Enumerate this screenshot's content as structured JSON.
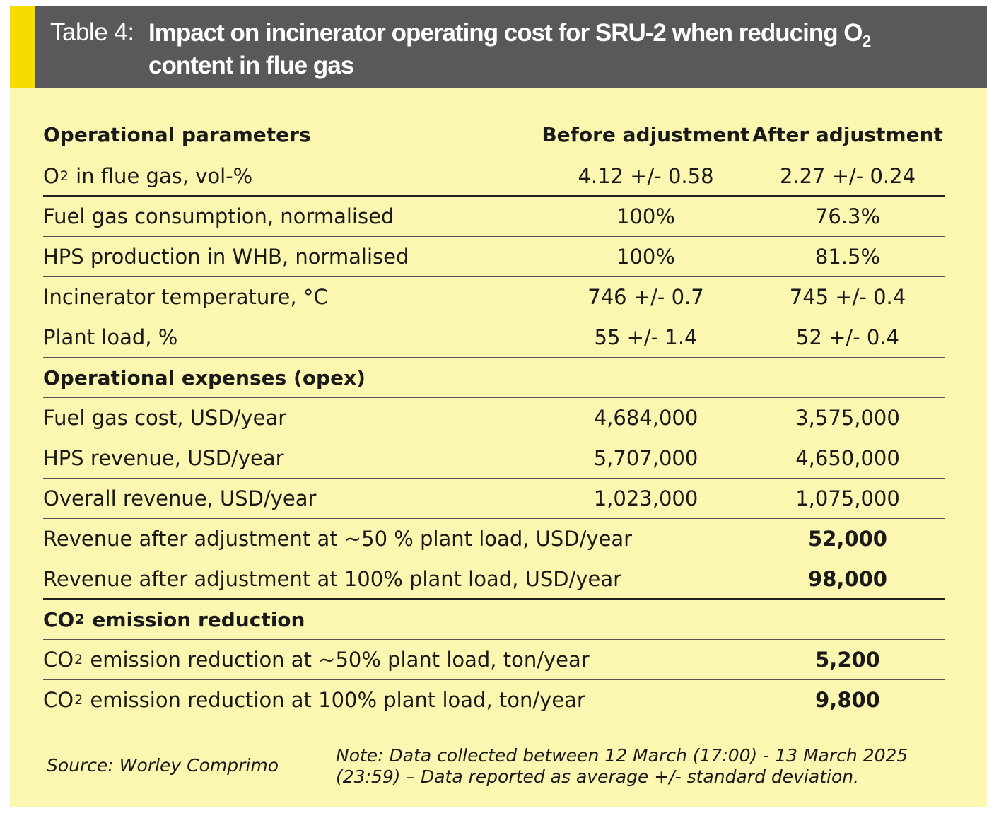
{
  "header": {
    "prefix": "Table 4:",
    "title_line1": "Impact on incinerator operating cost for SRU-2 when reducing O",
    "title_sub": "2",
    "title_line2": "content in flue gas"
  },
  "columns": {
    "parameter": "Operational parameters",
    "before": "Before adjustment",
    "after": "After adjustment"
  },
  "parameters": [
    {
      "label_pre": "O",
      "label_sub": "2",
      "label_post": " in flue gas, vol-%",
      "before": "4.12 +/- 0.58",
      "after": "2.27 +/- 0.24"
    },
    {
      "label": "Fuel gas consumption, normalised",
      "before": "100%",
      "after": "76.3%"
    },
    {
      "label": "HPS production in WHB, normalised",
      "before": "100%",
      "after": "81.5%"
    },
    {
      "label": "Incinerator temperature, °C",
      "before": "746 +/- 0.7",
      "after": "745 +/- 0.4"
    },
    {
      "label": "Plant load, %",
      "before": "55 +/- 1.4",
      "after": "52 +/- 0.4"
    }
  ],
  "opex": {
    "heading": "Operational expenses (opex)",
    "rows": [
      {
        "label": "Fuel gas cost, USD/year",
        "before": "4,684,000",
        "after": "3,575,000"
      },
      {
        "label": "HPS revenue, USD/year",
        "before": "5,707,000",
        "after": "4,650,000"
      },
      {
        "label": "Overall revenue, USD/year",
        "before": "1,023,000",
        "after": "1,075,000"
      },
      {
        "label": "Revenue after adjustment at ~50 % plant load, USD/year",
        "after": "52,000"
      },
      {
        "label": "Revenue after adjustment at 100% plant load, USD/year",
        "after": "98,000"
      }
    ]
  },
  "co2": {
    "heading_pre": "CO",
    "heading_sub": "2",
    "heading_post": " emission reduction",
    "rows": [
      {
        "label_pre": "CO",
        "label_sub": "2",
        "label_post": " emission reduction at ~50% plant load, ton/year",
        "after": "5,200"
      },
      {
        "label_pre": "CO",
        "label_sub": "2",
        "label_post": " emission reduction at 100% plant load, ton/year",
        "after": "9,800"
      }
    ]
  },
  "footer": {
    "source": "Source: Worley Comprimo",
    "note": "Note: Data collected between 12 March (17:00) - 13 March 2025 (23:59) – Data reported as average +/- standard deviation."
  },
  "colors": {
    "header_bg": "#59585a",
    "accent": "#f7dc00",
    "panel_bg": "#fbf6b0"
  }
}
